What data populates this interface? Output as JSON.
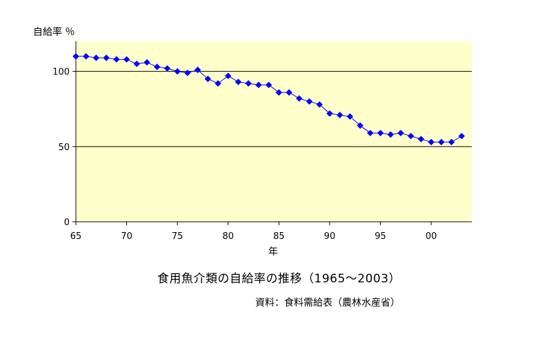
{
  "chart_data": {
    "type": "line",
    "title": "食用魚介類の自給率の推移（1965～2003）",
    "ylabel": "自給率 ％",
    "xlabel": "年",
    "source": "資料：食料需給表（農林水産省）",
    "xlim": [
      1965,
      2004
    ],
    "ylim": [
      0,
      120
    ],
    "xticks": [
      1965,
      1970,
      1975,
      1980,
      1985,
      1990,
      1995,
      2000
    ],
    "xtick_labels": [
      "65",
      "70",
      "75",
      "80",
      "85",
      "90",
      "95",
      "00"
    ],
    "yticks": [
      0,
      50,
      100
    ],
    "ytick_labels": [
      "0",
      "50",
      "100"
    ],
    "grid": "horizontal at 50 and 100",
    "legend": "none",
    "colors": {
      "plot_bg": "#FFFFCC",
      "series": "#0000FF",
      "grid": "#000000"
    },
    "series": [
      {
        "x": [
          1965,
          1966,
          1967,
          1968,
          1969,
          1970,
          1971,
          1972,
          1973,
          1974,
          1975,
          1976,
          1977,
          1978,
          1979,
          1980,
          1981,
          1982,
          1983,
          1984,
          1985,
          1986,
          1987,
          1988,
          1989,
          1990,
          1991,
          1992,
          1993,
          1994,
          1995,
          1996,
          1997,
          1998,
          1999,
          2000,
          2001,
          2002,
          2003
        ],
        "values": [
          110,
          110,
          109,
          109,
          108,
          108,
          105,
          106,
          103,
          102,
          100,
          99,
          101,
          95,
          92,
          97,
          93,
          92,
          91,
          91,
          86,
          86,
          82,
          80,
          78,
          72,
          71,
          70,
          64,
          59,
          59,
          58,
          59,
          57,
          55,
          53,
          53,
          53,
          57
        ]
      }
    ]
  }
}
